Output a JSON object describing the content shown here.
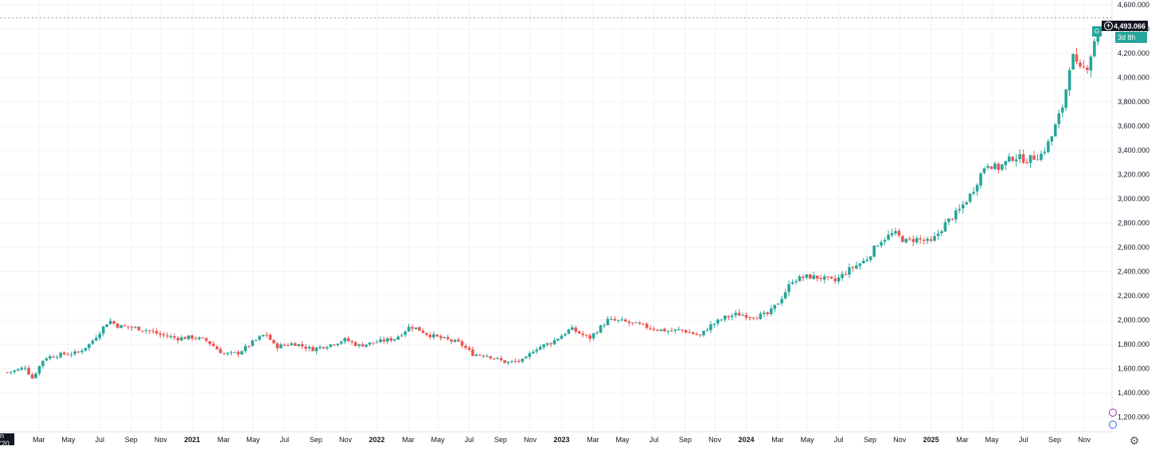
{
  "chart_data": {
    "type": "candlestick",
    "interval": "weekly",
    "y_ticks": [
      1200,
      1400,
      1600,
      1800,
      2000,
      2200,
      2400,
      2600,
      2800,
      3000,
      3200,
      3400,
      3600,
      3800,
      4000,
      4200,
      4400,
      4600
    ],
    "y_tick_labels": [
      "1,200.000",
      "1,400.000",
      "1,600.000",
      "1,800.000",
      "2,000.000",
      "2,200.000",
      "2,400.000",
      "2,600.000",
      "2,800.000",
      "3,000.000",
      "3,200.000",
      "3,400.000",
      "3,600.000",
      "3,800.000",
      "4,000.000",
      "4,200.000",
      "4,400.000",
      "4,600.000"
    ],
    "x_ticks": [
      {
        "label": "Mar",
        "t": 2020.17
      },
      {
        "label": "May",
        "t": 2020.33
      },
      {
        "label": "Jul",
        "t": 2020.5
      },
      {
        "label": "Sep",
        "t": 2020.67
      },
      {
        "label": "Nov",
        "t": 2020.83
      },
      {
        "label": "2021",
        "t": 2021.0
      },
      {
        "label": "Mar",
        "t": 2021.17
      },
      {
        "label": "May",
        "t": 2021.33
      },
      {
        "label": "Jul",
        "t": 2021.5
      },
      {
        "label": "Sep",
        "t": 2021.67
      },
      {
        "label": "Nov",
        "t": 2021.83
      },
      {
        "label": "2022",
        "t": 2022.0
      },
      {
        "label": "Mar",
        "t": 2022.17
      },
      {
        "label": "May",
        "t": 2022.33
      },
      {
        "label": "Jul",
        "t": 2022.5
      },
      {
        "label": "Sep",
        "t": 2022.67
      },
      {
        "label": "Nov",
        "t": 2022.83
      },
      {
        "label": "2023",
        "t": 2023.0
      },
      {
        "label": "Mar",
        "t": 2023.17
      },
      {
        "label": "May",
        "t": 2023.33
      },
      {
        "label": "Jul",
        "t": 2023.5
      },
      {
        "label": "Sep",
        "t": 2023.67
      },
      {
        "label": "Nov",
        "t": 2023.83
      },
      {
        "label": "2024",
        "t": 2024.0
      },
      {
        "label": "Mar",
        "t": 2024.17
      },
      {
        "label": "May",
        "t": 2024.33
      },
      {
        "label": "Jul",
        "t": 2024.5
      },
      {
        "label": "Sep",
        "t": 2024.67
      },
      {
        "label": "Nov",
        "t": 2024.83
      },
      {
        "label": "2025",
        "t": 2025.0
      },
      {
        "label": "Mar",
        "t": 2025.17
      },
      {
        "label": "May",
        "t": 2025.33
      },
      {
        "label": "Jul",
        "t": 2025.5
      },
      {
        "label": "Sep",
        "t": 2025.67
      },
      {
        "label": "Nov",
        "t": 2025.83
      }
    ],
    "start_label": "n '20",
    "last_price": 4493.066,
    "last_price_label": "4,493.066",
    "countdown": "3d 8h",
    "symbol_chip": "G",
    "close_path": [
      [
        2020.0,
        1570
      ],
      [
        2020.06,
        1590
      ],
      [
        2020.1,
        1620
      ],
      [
        2020.13,
        1510
      ],
      [
        2020.2,
        1690
      ],
      [
        2020.3,
        1720
      ],
      [
        2020.38,
        1730
      ],
      [
        2020.45,
        1810
      ],
      [
        2020.55,
        2000
      ],
      [
        2020.6,
        1950
      ],
      [
        2020.68,
        1940
      ],
      [
        2020.75,
        1920
      ],
      [
        2020.83,
        1880
      ],
      [
        2020.92,
        1850
      ],
      [
        2021.0,
        1860
      ],
      [
        2021.08,
        1830
      ],
      [
        2021.17,
        1720
      ],
      [
        2021.25,
        1730
      ],
      [
        2021.33,
        1820
      ],
      [
        2021.4,
        1890
      ],
      [
        2021.45,
        1780
      ],
      [
        2021.55,
        1810
      ],
      [
        2021.65,
        1760
      ],
      [
        2021.75,
        1800
      ],
      [
        2021.83,
        1840
      ],
      [
        2021.9,
        1790
      ],
      [
        2022.0,
        1820
      ],
      [
        2022.1,
        1850
      ],
      [
        2022.18,
        1950
      ],
      [
        2022.22,
        1930
      ],
      [
        2022.28,
        1880
      ],
      [
        2022.35,
        1850
      ],
      [
        2022.45,
        1810
      ],
      [
        2022.52,
        1720
      ],
      [
        2022.6,
        1710
      ],
      [
        2022.7,
        1650
      ],
      [
        2022.8,
        1670
      ],
      [
        2022.85,
        1760
      ],
      [
        2022.95,
        1820
      ],
      [
        2023.05,
        1930
      ],
      [
        2023.15,
        1850
      ],
      [
        2023.25,
        2000
      ],
      [
        2023.33,
        1990
      ],
      [
        2023.42,
        1960
      ],
      [
        2023.5,
        1930
      ],
      [
        2023.58,
        1910
      ],
      [
        2023.65,
        1920
      ],
      [
        2023.75,
        1870
      ],
      [
        2023.8,
        1950
      ],
      [
        2023.88,
        2020
      ],
      [
        2023.95,
        2050
      ],
      [
        2024.05,
        2030
      ],
      [
        2024.12,
        2050
      ],
      [
        2024.18,
        2160
      ],
      [
        2024.25,
        2330
      ],
      [
        2024.33,
        2360
      ],
      [
        2024.4,
        2350
      ],
      [
        2024.48,
        2320
      ],
      [
        2024.55,
        2410
      ],
      [
        2024.65,
        2500
      ],
      [
        2024.72,
        2650
      ],
      [
        2024.8,
        2720
      ],
      [
        2024.86,
        2650
      ],
      [
        2024.92,
        2670
      ],
      [
        2025.0,
        2640
      ],
      [
        2025.08,
        2800
      ],
      [
        2025.15,
        2900
      ],
      [
        2025.22,
        3050
      ],
      [
        2025.3,
        3300
      ],
      [
        2025.36,
        3250
      ],
      [
        2025.45,
        3350
      ],
      [
        2025.52,
        3320
      ],
      [
        2025.6,
        3370
      ],
      [
        2025.65,
        3500
      ],
      [
        2025.72,
        3800
      ],
      [
        2025.76,
        4200
      ],
      [
        2025.8,
        4050
      ],
      [
        2025.85,
        4100
      ],
      [
        2025.9,
        4400
      ],
      [
        2025.92,
        4493
      ]
    ]
  },
  "colors": {
    "up": "#26a69a",
    "down": "#ef5350",
    "grid": "#f0f3fa",
    "axis_text": "#131722",
    "price_line": "#9598a1"
  },
  "icons": {
    "settings": "gear-icon",
    "plus": "crosshair-plus-icon"
  }
}
